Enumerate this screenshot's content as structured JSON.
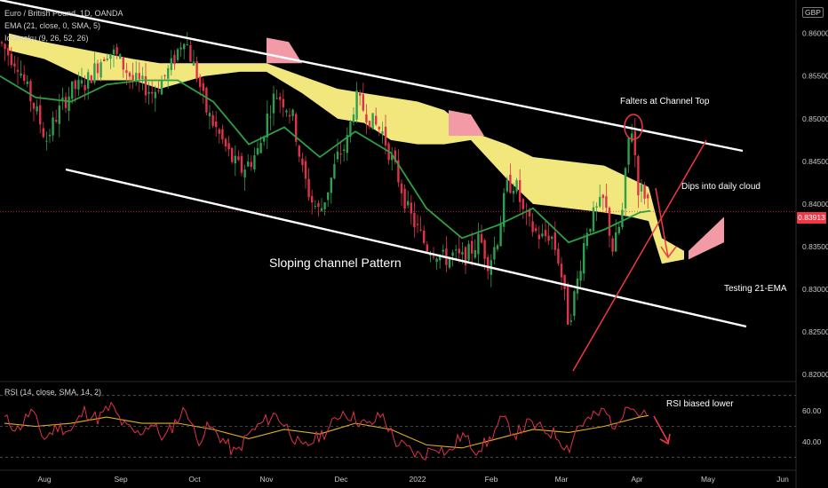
{
  "header": {
    "symbol_line": "Euro / British Pound, 1D, OANDA",
    "ema_line": "EMA (21, close, 0, SMA, 5)",
    "ichimoku_line": "Ichimoku (9, 26, 52, 26)",
    "rsi_line": "RSI (14, close, SMA, 14, 2)"
  },
  "unit_badge": "GBP",
  "current_price": "0.83913",
  "annotations": {
    "falters": "Falters at Channel Top",
    "dips": "Dips into daily cloud",
    "testing": "Testing 21-EMA",
    "channel": "Sloping channel Pattern",
    "rsi": "RSI biased lower"
  },
  "colors": {
    "up": "#2e9e4f",
    "down": "#e0324b",
    "cloud_bull": "#fff383",
    "cloud_bear": "#f29aa5",
    "ema": "#2ea043",
    "rsi": "#e0324b",
    "rsi_ma": "#e0b020",
    "arrow": "#f23645",
    "channel": "#ffffff"
  },
  "chart_data": {
    "type": "candlestick",
    "x_ticks": [
      "Aug",
      "Sep",
      "Oct",
      "Nov",
      "Dec",
      "2022",
      "Feb",
      "Mar",
      "Apr",
      "May",
      "Jun"
    ],
    "y_ticks": [
      "0.86000",
      "0.85500",
      "0.85000",
      "0.84500",
      "0.84000",
      "0.83500",
      "0.83000",
      "0.82500",
      "0.82000"
    ],
    "ylim": [
      0.8195,
      0.8635
    ],
    "rsi_ticks": [
      "60.00",
      "40.00"
    ],
    "rsi_ylim": [
      25,
      75
    ],
    "price_path": [
      [
        0,
        0.859
      ],
      [
        10,
        0.8575
      ],
      [
        20,
        0.8565
      ],
      [
        30,
        0.8535
      ],
      [
        42,
        0.8505
      ],
      [
        52,
        0.8475
      ],
      [
        62,
        0.85
      ],
      [
        72,
        0.852
      ],
      [
        82,
        0.8535
      ],
      [
        95,
        0.854
      ],
      [
        108,
        0.856
      ],
      [
        120,
        0.858
      ],
      [
        130,
        0.8575
      ],
      [
        140,
        0.856
      ],
      [
        150,
        0.8545
      ],
      [
        160,
        0.854
      ],
      [
        172,
        0.853
      ],
      [
        182,
        0.8545
      ],
      [
        192,
        0.856
      ],
      [
        200,
        0.858
      ],
      [
        208,
        0.86
      ],
      [
        212,
        0.858
      ],
      [
        222,
        0.855
      ],
      [
        232,
        0.851
      ],
      [
        242,
        0.849
      ],
      [
        252,
        0.847
      ],
      [
        262,
        0.845
      ],
      [
        272,
        0.844
      ],
      [
        282,
        0.845
      ],
      [
        292,
        0.8465
      ],
      [
        300,
        0.85
      ],
      [
        310,
        0.853
      ],
      [
        320,
        0.852
      ],
      [
        330,
        0.85
      ],
      [
        340,
        0.844
      ],
      [
        350,
        0.8405
      ],
      [
        360,
        0.839
      ],
      [
        370,
        0.842
      ],
      [
        380,
        0.8455
      ],
      [
        390,
        0.847
      ],
      [
        400,
        0.8525
      ],
      [
        410,
        0.851
      ],
      [
        420,
        0.8495
      ],
      [
        430,
        0.8485
      ],
      [
        440,
        0.8455
      ],
      [
        450,
        0.8425
      ],
      [
        460,
        0.839
      ],
      [
        470,
        0.837
      ],
      [
        480,
        0.835
      ],
      [
        490,
        0.8345
      ],
      [
        500,
        0.8335
      ],
      [
        510,
        0.834
      ],
      [
        520,
        0.8335
      ],
      [
        530,
        0.8345
      ],
      [
        540,
        0.836
      ],
      [
        550,
        0.833
      ],
      [
        560,
        0.836
      ],
      [
        570,
        0.842
      ],
      [
        580,
        0.8425
      ],
      [
        590,
        0.8385
      ],
      [
        600,
        0.837
      ],
      [
        610,
        0.836
      ],
      [
        620,
        0.8365
      ],
      [
        630,
        0.833
      ],
      [
        640,
        0.826
      ],
      [
        650,
        0.831
      ],
      [
        660,
        0.837
      ],
      [
        670,
        0.839
      ],
      [
        680,
        0.8405
      ],
      [
        690,
        0.8345
      ],
      [
        700,
        0.8385
      ],
      [
        708,
        0.848
      ],
      [
        712,
        0.849
      ],
      [
        718,
        0.842
      ],
      [
        728,
        0.841
      ],
      [
        732,
        0.8391
      ]
    ],
    "ema_path": [
      [
        0,
        0.855
      ],
      [
        40,
        0.8525
      ],
      [
        80,
        0.852
      ],
      [
        120,
        0.854
      ],
      [
        160,
        0.8545
      ],
      [
        200,
        0.8545
      ],
      [
        240,
        0.852
      ],
      [
        280,
        0.847
      ],
      [
        320,
        0.849
      ],
      [
        360,
        0.8455
      ],
      [
        400,
        0.8485
      ],
      [
        440,
        0.846
      ],
      [
        480,
        0.8395
      ],
      [
        520,
        0.836
      ],
      [
        560,
        0.8375
      ],
      [
        600,
        0.8395
      ],
      [
        640,
        0.8355
      ],
      [
        680,
        0.837
      ],
      [
        720,
        0.839
      ],
      [
        732,
        0.8392
      ]
    ],
    "cloud_bull_top": [
      [
        10,
        0.86
      ],
      [
        50,
        0.859
      ],
      [
        100,
        0.858
      ],
      [
        150,
        0.857
      ],
      [
        180,
        0.8565
      ],
      [
        230,
        0.8565
      ],
      [
        270,
        0.8565
      ],
      [
        300,
        0.8565
      ],
      [
        340,
        0.855
      ],
      [
        380,
        0.8535
      ],
      [
        410,
        0.853
      ],
      [
        440,
        0.8525
      ],
      [
        470,
        0.852
      ],
      [
        500,
        0.851
      ],
      [
        530,
        0.8485
      ],
      [
        570,
        0.847
      ],
      [
        600,
        0.8455
      ],
      [
        640,
        0.845
      ],
      [
        680,
        0.8445
      ],
      [
        710,
        0.843
      ],
      [
        730,
        0.842
      ],
      [
        745,
        0.836
      ],
      [
        770,
        0.8345
      ]
    ],
    "cloud_bull_bottom": [
      [
        10,
        0.858
      ],
      [
        50,
        0.857
      ],
      [
        100,
        0.8545
      ],
      [
        150,
        0.8545
      ],
      [
        180,
        0.8535
      ],
      [
        230,
        0.855
      ],
      [
        270,
        0.8555
      ],
      [
        300,
        0.8555
      ],
      [
        340,
        0.853
      ],
      [
        380,
        0.85
      ],
      [
        410,
        0.8495
      ],
      [
        440,
        0.8475
      ],
      [
        470,
        0.847
      ],
      [
        500,
        0.847
      ],
      [
        530,
        0.8475
      ],
      [
        570,
        0.843
      ],
      [
        600,
        0.84
      ],
      [
        640,
        0.8395
      ],
      [
        680,
        0.839
      ],
      [
        710,
        0.8385
      ],
      [
        730,
        0.838
      ],
      [
        745,
        0.833
      ],
      [
        770,
        0.8335
      ]
    ],
    "cloud_bear_spans": [
      [
        [
          300,
          0.8595
        ],
        [
          325,
          0.859
        ],
        [
          340,
          0.8565
        ],
        [
          300,
          0.8565
        ]
      ],
      [
        [
          505,
          0.851
        ],
        [
          530,
          0.8505
        ],
        [
          545,
          0.848
        ],
        [
          505,
          0.848
        ]
      ],
      [
        [
          775,
          0.8345
        ],
        [
          800,
          0.837
        ],
        [
          815,
          0.8385
        ],
        [
          815,
          0.8355
        ],
        [
          775,
          0.8335
        ]
      ]
    ],
    "rsi_path": [
      [
        5,
        55
      ],
      [
        20,
        48
      ],
      [
        35,
        60
      ],
      [
        50,
        42
      ],
      [
        65,
        50
      ],
      [
        80,
        47
      ],
      [
        95,
        60
      ],
      [
        110,
        55
      ],
      [
        125,
        63
      ],
      [
        140,
        50
      ],
      [
        155,
        45
      ],
      [
        170,
        52
      ],
      [
        185,
        42
      ],
      [
        200,
        55
      ],
      [
        210,
        62
      ],
      [
        222,
        40
      ],
      [
        235,
        50
      ],
      [
        250,
        42
      ],
      [
        265,
        32
      ],
      [
        280,
        45
      ],
      [
        295,
        52
      ],
      [
        310,
        58
      ],
      [
        325,
        48
      ],
      [
        340,
        35
      ],
      [
        355,
        42
      ],
      [
        370,
        48
      ],
      [
        385,
        60
      ],
      [
        400,
        55
      ],
      [
        415,
        50
      ],
      [
        430,
        58
      ],
      [
        445,
        40
      ],
      [
        460,
        35
      ],
      [
        475,
        30
      ],
      [
        490,
        38
      ],
      [
        505,
        32
      ],
      [
        520,
        45
      ],
      [
        535,
        35
      ],
      [
        550,
        40
      ],
      [
        565,
        55
      ],
      [
        580,
        45
      ],
      [
        595,
        52
      ],
      [
        610,
        48
      ],
      [
        625,
        45
      ],
      [
        640,
        35
      ],
      [
        650,
        50
      ],
      [
        665,
        55
      ],
      [
        680,
        60
      ],
      [
        695,
        48
      ],
      [
        705,
        68
      ],
      [
        712,
        62
      ],
      [
        720,
        58
      ],
      [
        730,
        56
      ]
    ],
    "rsi_ma_path": [
      [
        5,
        52
      ],
      [
        40,
        50
      ],
      [
        80,
        52
      ],
      [
        120,
        56
      ],
      [
        160,
        52
      ],
      [
        200,
        52
      ],
      [
        240,
        48
      ],
      [
        280,
        42
      ],
      [
        320,
        48
      ],
      [
        360,
        45
      ],
      [
        400,
        52
      ],
      [
        440,
        48
      ],
      [
        480,
        38
      ],
      [
        520,
        36
      ],
      [
        560,
        42
      ],
      [
        600,
        48
      ],
      [
        640,
        46
      ],
      [
        680,
        50
      ],
      [
        720,
        56
      ],
      [
        730,
        57
      ]
    ]
  }
}
